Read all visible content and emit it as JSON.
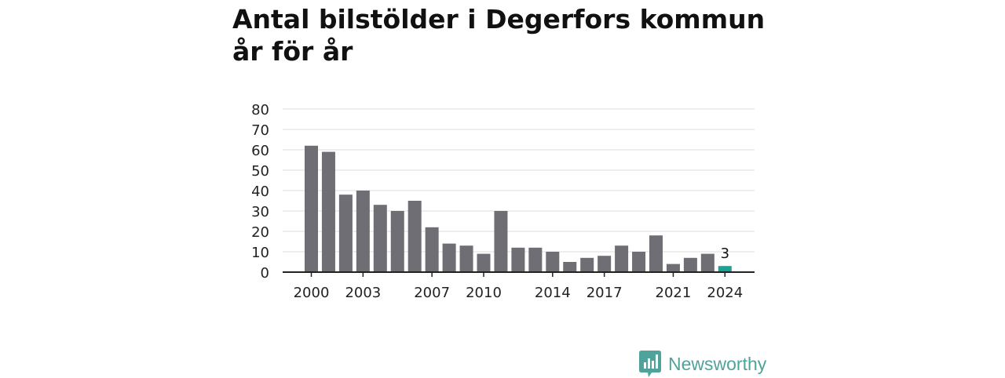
{
  "title": "Antal bilstölder i Degerfors kommun år för år",
  "brand": {
    "name": "Newsworthy",
    "icon": "newsworthy-logo-icon",
    "color": "#4fa39a"
  },
  "colors": {
    "bar": "#6f6e74",
    "highlight": "#17a396",
    "grid": "#dcdcdc",
    "axis": "#222222"
  },
  "chart_data": {
    "type": "bar",
    "title": "Antal bilstölder i Degerfors kommun år för år",
    "xlabel": "",
    "ylabel": "",
    "ylim": [
      0,
      80
    ],
    "yticks": [
      0,
      10,
      20,
      30,
      40,
      50,
      60,
      70,
      80
    ],
    "categories": [
      "2000",
      "2001",
      "2002",
      "2003",
      "2004",
      "2005",
      "2006",
      "2007",
      "2008",
      "2009",
      "2010",
      "2011",
      "2012",
      "2013",
      "2014",
      "2015",
      "2016",
      "2017",
      "2018",
      "2019",
      "2020",
      "2021",
      "2022",
      "2023",
      "2024"
    ],
    "values": [
      62,
      59,
      38,
      40,
      33,
      30,
      35,
      22,
      14,
      13,
      9,
      30,
      12,
      12,
      10,
      5,
      7,
      8,
      13,
      10,
      18,
      4,
      7,
      9,
      3
    ],
    "xtick_labels": [
      "2000",
      "2003",
      "2007",
      "2010",
      "2014",
      "2017",
      "2021",
      "2024"
    ],
    "highlight": {
      "category": "2024",
      "label": "3"
    },
    "grid": true,
    "legend": "none"
  }
}
